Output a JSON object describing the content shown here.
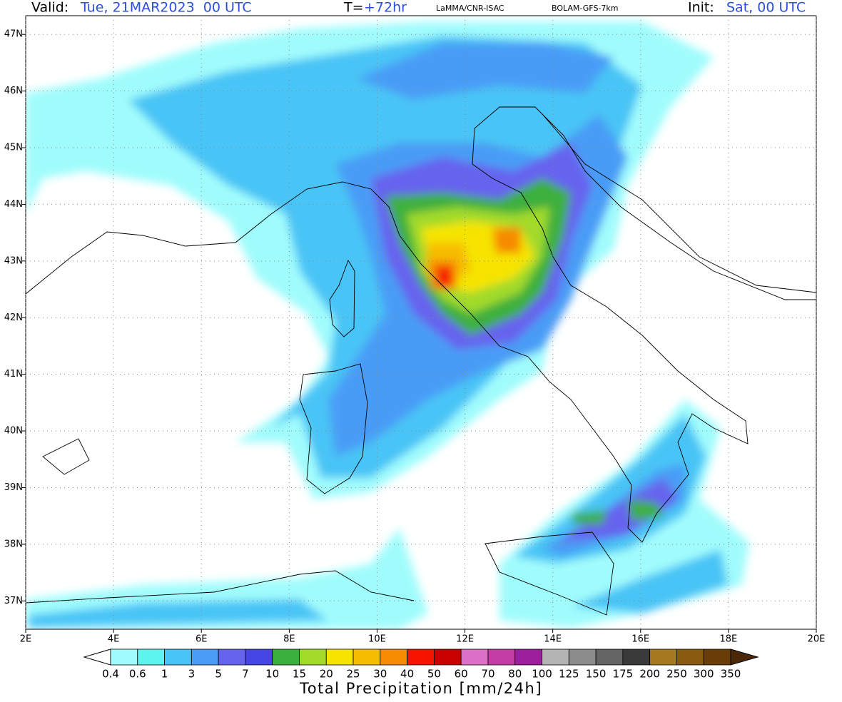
{
  "header": {
    "valid_label": "Valid:",
    "valid_value": "Tue, 21MAR2023  00 UTC",
    "forecast_label": "T=",
    "forecast_value": "+72hr",
    "source": "LaMMA/CNR-ISAC",
    "model": "BOLAM-GFS-7km",
    "init_label": "Init:",
    "init_value": "Sat, 00 UTC"
  },
  "map": {
    "xlim": [
      2,
      20
    ],
    "ylim": [
      36.5,
      47.33
    ],
    "xticks": [
      {
        "value": 2,
        "label": "2E"
      },
      {
        "value": 4,
        "label": "4E"
      },
      {
        "value": 6,
        "label": "6E"
      },
      {
        "value": 8,
        "label": "8E"
      },
      {
        "value": 10,
        "label": "10E"
      },
      {
        "value": 12,
        "label": "12E"
      },
      {
        "value": 14,
        "label": "14E"
      },
      {
        "value": 16,
        "label": "16E"
      },
      {
        "value": 18,
        "label": "18E"
      },
      {
        "value": 20,
        "label": "20E"
      }
    ],
    "yticks": [
      {
        "value": 37,
        "label": "37N"
      },
      {
        "value": 38,
        "label": "38N"
      },
      {
        "value": 39,
        "label": "39N"
      },
      {
        "value": 40,
        "label": "40N"
      },
      {
        "value": 41,
        "label": "41N"
      },
      {
        "value": 42,
        "label": "42N"
      },
      {
        "value": 43,
        "label": "43N"
      },
      {
        "value": 44,
        "label": "44N"
      },
      {
        "value": 45,
        "label": "45N"
      },
      {
        "value": 46,
        "label": "46N"
      },
      {
        "value": 47,
        "label": "47N"
      }
    ],
    "grid": true
  },
  "colorbar": {
    "title": "Total Precipitation [mm/24h]",
    "levels": [
      0.4,
      0.6,
      1,
      3,
      5,
      7,
      10,
      15,
      20,
      25,
      30,
      40,
      50,
      60,
      70,
      80,
      100,
      125,
      150,
      175,
      200,
      250,
      300,
      350
    ],
    "colors": [
      "#ffffff",
      "#a0fcfc",
      "#5ef4ee",
      "#48c4f6",
      "#4a9cf6",
      "#6664ee",
      "#4646e6",
      "#3cb03c",
      "#a2da2a",
      "#f6e400",
      "#f6be00",
      "#f68a00",
      "#f61400",
      "#c80000",
      "#dc70c6",
      "#c43ca6",
      "#9c1e9c",
      "#b4b4b4",
      "#8c8c8c",
      "#646464",
      "#3a3a3a",
      "#a67820",
      "#8a5a10",
      "#6a3c08",
      "#4a2808"
    ]
  }
}
